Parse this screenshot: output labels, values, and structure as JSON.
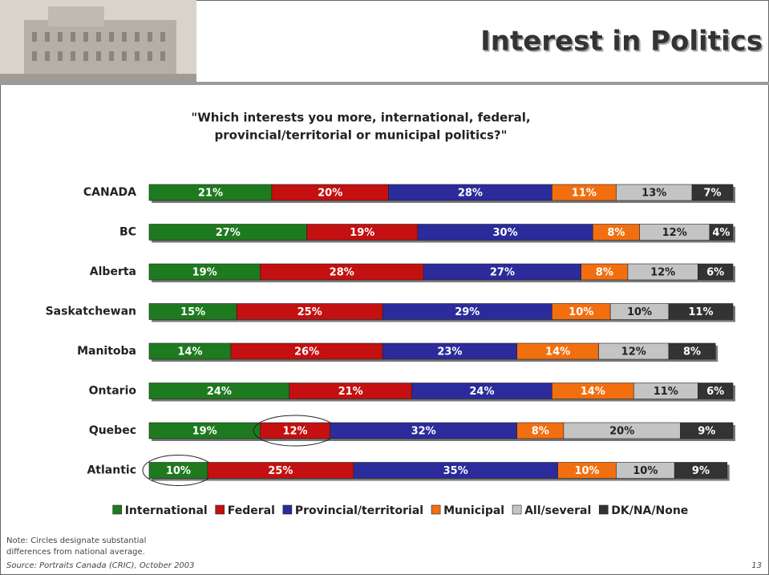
{
  "chart_data": {
    "type": "stacked-bar",
    "title": "Interest in Politics",
    "subtitle": [
      "\"Which interests you more, international, federal,",
      "provincial/territorial or municipal politics?\""
    ],
    "categories": [
      "CANADA",
      "BC",
      "Alberta",
      "Saskatchewan",
      "Manitoba",
      "Ontario",
      "Quebec",
      "Atlantic"
    ],
    "series": [
      {
        "name": "International",
        "color": "#1e7a1e",
        "label_color": "#ffffff",
        "values": [
          21,
          27,
          19,
          15,
          14,
          24,
          19,
          10
        ],
        "value_labels": [
          "21%",
          "27%",
          "19%",
          "15%",
          "14%",
          "24%",
          "19%",
          "10%"
        ]
      },
      {
        "name": "Federal",
        "color": "#c41010",
        "label_color": "#ffffff",
        "values": [
          20,
          19,
          28,
          25,
          26,
          21,
          12,
          25
        ],
        "value_labels": [
          "20%",
          "19%",
          "28%",
          "25%",
          "26%",
          "21%",
          "12%",
          "25%"
        ]
      },
      {
        "name": "Provincial/territorial",
        "color": "#2b2b9c",
        "label_color": "#ffffff",
        "values": [
          28,
          30,
          27,
          29,
          23,
          24,
          32,
          35
        ],
        "value_labels": [
          "28%",
          "30%",
          "27%",
          "29%",
          "23%",
          "24%",
          "32%",
          "35%"
        ]
      },
      {
        "name": "Municipal",
        "color": "#f26f10",
        "label_color": "#ffffff",
        "values": [
          11,
          8,
          8,
          10,
          14,
          14,
          8,
          10
        ],
        "value_labels": [
          "11%",
          "8%",
          "8%",
          "10%",
          "14%",
          "14%",
          "8%",
          "10%"
        ]
      },
      {
        "name": "All/several",
        "color": "#c4c4c4",
        "label_color": "#222222",
        "values": [
          13,
          12,
          12,
          10,
          12,
          11,
          20,
          10
        ],
        "value_labels": [
          "13%",
          "12%",
          "12%",
          "10%",
          "12%",
          "11%",
          "20%",
          "10%"
        ]
      },
      {
        "name": "DK/NA/None",
        "color": "#333333",
        "label_color": "#ffffff",
        "values": [
          7,
          4,
          6,
          11,
          8,
          6,
          9,
          9
        ],
        "value_labels": [
          "7%",
          "4%",
          "6%",
          "11%",
          "8%",
          "6%",
          "9%",
          "9%"
        ]
      }
    ],
    "highlights": [
      {
        "category": "Quebec",
        "series": "Federal"
      },
      {
        "category": "Atlantic",
        "series": "International"
      }
    ],
    "note": [
      "Note:  Circles designate substantial",
      "differences from national average."
    ],
    "source": "Source: Portraits Canada (CRIC), October 2003",
    "page_number": "13"
  }
}
